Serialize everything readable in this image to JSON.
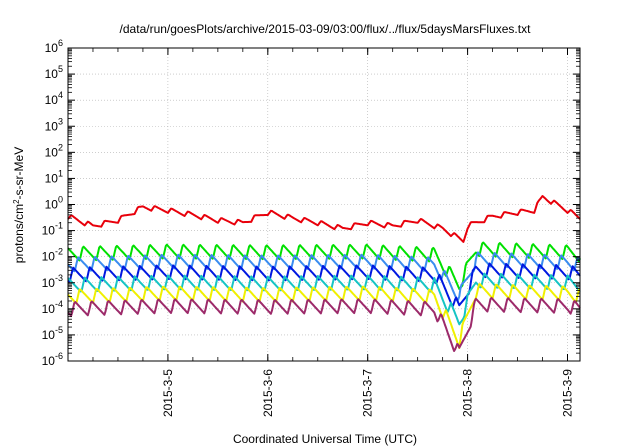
{
  "chart_data": {
    "type": "line",
    "title": "/data/run/goesPlots/archive/2015-03-09/03:00/flux/../flux/5daysMarsFluxes.txt",
    "xlabel": "Coordinated Universal Time (UTC)",
    "ylabel": "protons/cm2-s-sr-MeV",
    "ylabel_parts": {
      "pre": "protons/cm",
      "sup": "2",
      "post": "-s-sr-MeV"
    },
    "yscale": "log",
    "ylim": [
      1e-06,
      1000000.0
    ],
    "y_ticks": [
      {
        "value": 1e-06,
        "exp": "-6"
      },
      {
        "value": 1e-05,
        "exp": "-5"
      },
      {
        "value": 0.0001,
        "exp": "-4"
      },
      {
        "value": 0.001,
        "exp": "-3"
      },
      {
        "value": 0.01,
        "exp": "-2"
      },
      {
        "value": 0.1,
        "exp": "-1"
      },
      {
        "value": 1,
        "exp": "0"
      },
      {
        "value": 10,
        "exp": "1"
      },
      {
        "value": 100,
        "exp": "2"
      },
      {
        "value": 1000,
        "exp": "3"
      },
      {
        "value": 10000,
        "exp": "4"
      },
      {
        "value": 100000,
        "exp": "5"
      },
      {
        "value": 1000000,
        "exp": "6"
      }
    ],
    "x_tick_labels": [
      "2015-3-5",
      "2015-3-6",
      "2015-3-7",
      "2015-3-8",
      "2015-3-9"
    ],
    "xlim": [
      "2015-03-04 00:00",
      "2015-03-09 03:00"
    ],
    "grid": true,
    "legend": "none",
    "series": [
      {
        "color": "#e8000b",
        "x": [
          "2015-03-04 00:00",
          "2015-03-04 06:00",
          "2015-03-04 12:00",
          "2015-03-04 18:00",
          "2015-03-05 00:00",
          "2015-03-05 06:00",
          "2015-03-05 12:00",
          "2015-03-05 18:00",
          "2015-03-06 00:00",
          "2015-03-06 06:00",
          "2015-03-06 12:00",
          "2015-03-06 18:00",
          "2015-03-07 00:00",
          "2015-03-07 06:00",
          "2015-03-07 12:00",
          "2015-03-07 18:00",
          "2015-03-07 23:00",
          "2015-03-08 00:00",
          "2015-03-08 06:00",
          "2015-03-08 12:00",
          "2015-03-08 16:00",
          "2015-03-08 18:00",
          "2015-03-09 00:00",
          "2015-03-09 03:00"
        ],
        "y": [
          0.35,
          0.15,
          0.25,
          0.8,
          0.6,
          0.4,
          0.25,
          0.2,
          0.5,
          0.3,
          0.2,
          0.12,
          0.2,
          0.15,
          0.25,
          0.12,
          0.04,
          0.15,
          0.35,
          0.5,
          0.6,
          2.0,
          0.6,
          0.3
        ]
      },
      {
        "color": "#00e000",
        "x": [
          "2015-03-04 00:00",
          "2015-03-05 00:00",
          "2015-03-06 00:00",
          "2015-03-07 00:00",
          "2015-03-07 16:00",
          "2015-03-07 22:00",
          "2015-03-08 02:00",
          "2015-03-09 00:00",
          "2015-03-09 03:00"
        ],
        "y": [
          0.013,
          0.016,
          0.015,
          0.016,
          0.012,
          0.0008,
          0.02,
          0.015,
          0.012
        ]
      },
      {
        "color": "#3a8cf0",
        "x": [
          "2015-03-04 00:00",
          "2015-03-05 00:00",
          "2015-03-06 00:00",
          "2015-03-07 00:00",
          "2015-03-07 16:00",
          "2015-03-07 22:00",
          "2015-03-08 02:00",
          "2015-03-09 00:00",
          "2015-03-09 03:00"
        ],
        "y": [
          0.005,
          0.0065,
          0.006,
          0.0065,
          0.005,
          0.0003,
          0.008,
          0.006,
          0.005
        ]
      },
      {
        "color": "#0018e0",
        "x": [
          "2015-03-04 00:00",
          "2015-03-05 00:00",
          "2015-03-06 00:00",
          "2015-03-07 00:00",
          "2015-03-07 16:00",
          "2015-03-07 22:00",
          "2015-03-08 02:00",
          "2015-03-09 00:00",
          "2015-03-09 03:00"
        ],
        "y": [
          0.002,
          0.0025,
          0.0022,
          0.0025,
          0.002,
          0.0001,
          0.003,
          0.0025,
          0.002
        ]
      },
      {
        "color": "#16c4c4",
        "x": [
          "2015-03-04 00:00",
          "2015-03-05 00:00",
          "2015-03-06 00:00",
          "2015-03-07 00:00",
          "2015-03-07 16:00",
          "2015-03-07 22:00",
          "2015-03-08 02:00",
          "2015-03-09 00:00",
          "2015-03-09 03:00"
        ],
        "y": [
          0.0008,
          0.001,
          0.0009,
          0.001,
          0.0008,
          3e-05,
          0.0012,
          0.001,
          0.0008
        ]
      },
      {
        "color": "#f0f000",
        "x": [
          "2015-03-04 00:00",
          "2015-03-05 00:00",
          "2015-03-06 00:00",
          "2015-03-07 00:00",
          "2015-03-07 16:00",
          "2015-03-07 22:00",
          "2015-03-08 02:00",
          "2015-03-09 00:00",
          "2015-03-09 03:00"
        ],
        "y": [
          0.0003,
          0.0004,
          0.00035,
          0.0004,
          0.0003,
          6e-06,
          0.0005,
          0.0004,
          0.0003
        ]
      },
      {
        "color": "#9c2a6a",
        "x": [
          "2015-03-04 00:00",
          "2015-03-05 00:00",
          "2015-03-06 00:00",
          "2015-03-07 00:00",
          "2015-03-07 16:00",
          "2015-03-07 22:00",
          "2015-03-08 02:00",
          "2015-03-09 00:00",
          "2015-03-09 03:00"
        ],
        "y": [
          0.0001,
          0.00013,
          0.00012,
          0.00013,
          0.0001,
          2e-06,
          0.00015,
          0.00013,
          0.0001
        ]
      }
    ]
  }
}
